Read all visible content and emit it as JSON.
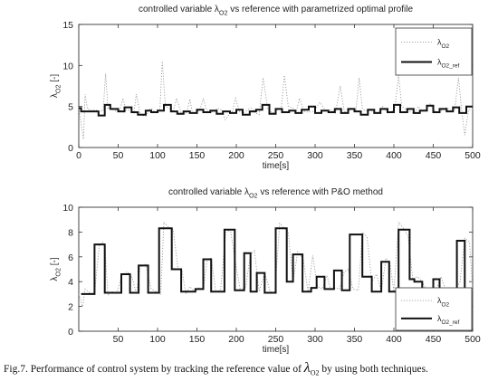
{
  "figure": {
    "caption_text": "Fig.7. Performance of control system by tracking the reference value of",
    "caption_symbol": "λ",
    "caption_symbol_sub": "O2",
    "caption_tail": "by using both techniques."
  },
  "chart_data": [
    {
      "type": "line",
      "title": "controlled variable λO2 vs reference with parametrized optimal profile",
      "title_parts": {
        "pre": "controlled variable λ",
        "sub": "O2",
        "post": " vs reference with parametrized optimal profile"
      },
      "xlabel": "time[s]",
      "ylabel": "λO2 [-]",
      "xlim": [
        0,
        500
      ],
      "ylim": [
        0,
        15
      ],
      "xticks": [
        0,
        50,
        100,
        150,
        200,
        250,
        300,
        350,
        400,
        450,
        500
      ],
      "yticks": [
        0,
        5,
        10,
        15
      ],
      "legend_position": "top-right",
      "series": [
        {
          "name": "λO2",
          "name_parts": {
            "base": "λ",
            "sub": "O2"
          },
          "style": "dotted",
          "color": "#9a9a9a",
          "x": [
            0,
            6,
            8,
            11,
            14,
            17,
            21,
            26,
            31,
            34,
            37,
            40,
            45,
            52,
            56,
            60,
            66,
            70,
            73,
            78,
            85,
            89,
            92,
            97,
            103,
            106,
            110,
            115,
            120,
            124,
            130,
            137,
            141,
            144,
            149,
            154,
            158,
            162,
            167,
            172,
            176,
            181,
            186,
            191,
            195,
            199,
            204,
            209,
            214,
            219,
            224,
            229,
            234,
            240,
            246,
            252,
            257,
            261,
            266,
            272,
            276,
            280,
            286,
            292,
            297,
            301,
            306,
            312,
            317,
            321,
            326,
            332,
            337,
            341,
            346,
            352,
            356,
            360,
            365,
            371,
            376,
            381,
            386,
            392,
            397,
            401,
            406,
            410,
            415,
            420,
            426,
            431,
            436,
            441,
            446,
            452,
            456,
            462,
            467,
            472,
            477,
            482,
            486,
            490,
            495,
            500
          ],
          "y": [
            4.8,
            1.0,
            6.5,
            4.7,
            4.6,
            4.5,
            4.6,
            4.4,
            4.5,
            9.0,
            4.8,
            4.8,
            4.5,
            4.4,
            6.0,
            4.6,
            4.5,
            4.2,
            6.5,
            4.0,
            3.8,
            4.6,
            4.8,
            4.3,
            4.6,
            10.5,
            5.0,
            4.8,
            4.4,
            6.0,
            4.2,
            4.2,
            5.9,
            4.3,
            4.2,
            4.7,
            6.0,
            4.6,
            4.4,
            4.3,
            4.8,
            4.6,
            3.4,
            4.0,
            4.4,
            6.0,
            4.4,
            4.2,
            4.6,
            4.8,
            4.2,
            4.0,
            8.5,
            4.6,
            4.2,
            4.6,
            4.8,
            8.8,
            5.0,
            4.8,
            4.2,
            6.0,
            4.4,
            4.3,
            4.4,
            4.8,
            5.5,
            4.7,
            4.4,
            4.6,
            4.2,
            7.5,
            4.4,
            4.3,
            4.8,
            4.6,
            8.5,
            4.7,
            4.5,
            4.5,
            4.2,
            4.4,
            5.0,
            4.2,
            4.4,
            4.6,
            8.8,
            5.0,
            4.7,
            4.4,
            4.2,
            5.0,
            4.4,
            4.6,
            5.3,
            4.4,
            4.2,
            4.6,
            4.9,
            4.5,
            4.5,
            8.5,
            4.6,
            1.5,
            4.6,
            4.6
          ]
        },
        {
          "name": "λO2_ref",
          "name_parts": {
            "base": "λ",
            "sub": "O2_ref"
          },
          "style": "solid",
          "color": "#111111",
          "x": [
            0,
            3,
            3,
            12,
            12,
            25,
            25,
            33,
            33,
            40,
            40,
            50,
            50,
            58,
            58,
            67,
            67,
            75,
            75,
            85,
            85,
            92,
            92,
            100,
            100,
            108,
            108,
            117,
            117,
            125,
            125,
            133,
            133,
            141,
            141,
            150,
            150,
            158,
            158,
            167,
            167,
            175,
            175,
            183,
            183,
            192,
            192,
            200,
            200,
            208,
            208,
            217,
            217,
            225,
            225,
            233,
            233,
            242,
            242,
            250,
            250,
            258,
            258,
            267,
            267,
            275,
            275,
            283,
            283,
            292,
            292,
            300,
            300,
            308,
            308,
            317,
            317,
            325,
            325,
            333,
            333,
            342,
            342,
            350,
            350,
            358,
            358,
            367,
            367,
            375,
            375,
            383,
            383,
            392,
            392,
            400,
            400,
            408,
            408,
            417,
            417,
            425,
            425,
            433,
            433,
            442,
            442,
            450,
            450,
            458,
            458,
            467,
            467,
            475,
            475,
            483,
            483,
            492,
            492,
            500
          ],
          "y": [
            4.8,
            4.8,
            4.4,
            4.4,
            4.4,
            4.4,
            3.9,
            3.9,
            5.2,
            5.2,
            4.7,
            4.7,
            4.4,
            4.4,
            4.9,
            4.9,
            4.3,
            4.3,
            4.0,
            4.0,
            4.5,
            4.5,
            4.3,
            4.3,
            4.5,
            4.5,
            5.2,
            5.2,
            4.4,
            4.4,
            4.1,
            4.1,
            4.4,
            4.4,
            4.2,
            4.2,
            4.6,
            4.6,
            4.3,
            4.3,
            4.5,
            4.5,
            4.1,
            4.1,
            4.4,
            4.4,
            4.2,
            4.2,
            4.6,
            4.6,
            4.0,
            4.0,
            4.4,
            4.4,
            4.6,
            4.6,
            5.2,
            5.2,
            4.1,
            4.1,
            4.7,
            4.7,
            4.3,
            4.3,
            4.5,
            4.5,
            4.2,
            4.2,
            4.6,
            4.6,
            5.0,
            5.0,
            4.2,
            4.2,
            4.5,
            4.5,
            4.3,
            4.3,
            4.7,
            4.7,
            4.2,
            4.2,
            4.7,
            4.7,
            4.4,
            4.4,
            4.0,
            4.0,
            4.6,
            4.6,
            4.2,
            4.2,
            4.7,
            4.7,
            4.3,
            4.3,
            5.2,
            5.2,
            4.3,
            4.3,
            4.7,
            4.7,
            4.2,
            4.2,
            4.5,
            4.5,
            5.1,
            5.1,
            4.3,
            4.3,
            4.7,
            4.7,
            4.4,
            4.4,
            4.9,
            4.9,
            4.2,
            4.2,
            5.0,
            5.0
          ]
        }
      ]
    },
    {
      "type": "line",
      "title": "controlled variable λO2 vs reference with P&O method",
      "title_parts": {
        "pre": "controlled variable λ",
        "sub": "O2",
        "post": " vs reference with P&O method"
      },
      "xlabel": "time[s]",
      "ylabel": "λO2 [-]",
      "xlim": [
        0,
        500
      ],
      "ylim": [
        0,
        10
      ],
      "xticks": [
        50,
        100,
        150,
        200,
        250,
        300,
        350,
        400,
        450,
        500
      ],
      "yticks": [
        0,
        2,
        4,
        6,
        8,
        10
      ],
      "legend_position": "bottom-right",
      "series": [
        {
          "name": "λO2",
          "name_parts": {
            "base": "λ",
            "sub": "O2"
          },
          "style": "dotted",
          "color": "#9a9a9a",
          "x": [
            0,
            5,
            8,
            14,
            20,
            26,
            30,
            33,
            37,
            42,
            48,
            55,
            62,
            68,
            73,
            78,
            85,
            92,
            98,
            104,
            108,
            115,
            120,
            126,
            131,
            136,
            141,
            147,
            152,
            158,
            163,
            168,
            174,
            180,
            187,
            193,
            198,
            205,
            212,
            218,
            223,
            229,
            236,
            243,
            249,
            255,
            261,
            266,
            272,
            278,
            285,
            291,
            297,
            303,
            309,
            315,
            320,
            326,
            331,
            337,
            342,
            348,
            355,
            360,
            366,
            372,
            378,
            384,
            390,
            395,
            400,
            406,
            412,
            418,
            424,
            430,
            436,
            442,
            448,
            454,
            460,
            466,
            472,
            478,
            484,
            490,
            496,
            500
          ],
          "y": [
            3.0,
            2.0,
            3.4,
            3.1,
            3.0,
            6.9,
            7.2,
            7.0,
            2.9,
            3.2,
            3.0,
            4.6,
            4.8,
            4.3,
            3.0,
            5.2,
            5.4,
            3.4,
            3.2,
            3.0,
            8.8,
            8.3,
            8.2,
            5.0,
            4.9,
            3.0,
            3.6,
            3.2,
            3.5,
            3.4,
            5.8,
            5.9,
            3.2,
            3.3,
            8.2,
            8.0,
            5.9,
            3.3,
            3.6,
            6.2,
            6.5,
            3.2,
            4.7,
            3.2,
            3.1,
            8.7,
            8.3,
            8.0,
            4.0,
            6.4,
            5.8,
            3.2,
            6.1,
            3.6,
            3.4,
            4.5,
            3.3,
            3.5,
            3.4,
            4.8,
            5.0,
            3.4,
            3.3,
            8.0,
            7.6,
            4.0,
            4.6,
            3.2,
            5.9,
            5.5,
            3.2,
            8.8,
            8.3,
            7.7,
            4.2,
            4.4,
            4.0,
            3.2,
            3.3,
            3.4,
            4.4,
            3.3,
            3.2,
            3.3,
            4.0,
            7.5,
            7.2,
            3.3
          ]
        },
        {
          "name": "λO2_ref",
          "name_parts": {
            "base": "λ",
            "sub": "O2_ref"
          },
          "style": "solid",
          "color": "#111111",
          "x": [
            3,
            3,
            20,
            20,
            33,
            33,
            38,
            38,
            54,
            54,
            65,
            65,
            76,
            76,
            88,
            88,
            102,
            102,
            118,
            118,
            130,
            130,
            140,
            140,
            148,
            148,
            158,
            158,
            168,
            168,
            180,
            180,
            185,
            185,
            198,
            198,
            210,
            210,
            218,
            218,
            226,
            226,
            236,
            236,
            250,
            250,
            264,
            264,
            272,
            272,
            284,
            284,
            295,
            295,
            302,
            302,
            312,
            312,
            324,
            324,
            334,
            334,
            344,
            344,
            360,
            360,
            372,
            372,
            384,
            384,
            394,
            394,
            406,
            406,
            420,
            420,
            426,
            426,
            436,
            436,
            443,
            443,
            450,
            450,
            458,
            458,
            470,
            470,
            480,
            480,
            490,
            490,
            496,
            496
          ],
          "y": [
            3.0,
            3.0,
            3.0,
            7.0,
            7.0,
            3.1,
            3.1,
            3.1,
            3.1,
            4.6,
            4.6,
            3.1,
            3.1,
            5.3,
            5.3,
            3.1,
            3.1,
            8.3,
            8.3,
            5.0,
            5.0,
            3.2,
            3.2,
            3.2,
            3.2,
            3.4,
            3.4,
            5.8,
            5.8,
            3.2,
            3.2,
            3.2,
            3.2,
            8.2,
            8.2,
            3.3,
            3.3,
            6.3,
            6.3,
            3.2,
            3.2,
            4.7,
            4.7,
            3.1,
            3.1,
            8.3,
            8.3,
            4.0,
            4.0,
            6.2,
            6.2,
            3.2,
            3.2,
            3.5,
            3.5,
            4.4,
            4.4,
            3.4,
            3.4,
            4.9,
            4.9,
            3.3,
            3.3,
            7.8,
            7.8,
            4.4,
            4.4,
            3.2,
            3.2,
            5.6,
            5.6,
            3.2,
            3.2,
            8.2,
            8.2,
            4.2,
            4.2,
            4.0,
            4.0,
            3.3,
            3.3,
            3.3,
            3.3,
            4.2,
            4.2,
            3.2,
            3.2,
            3.2,
            3.2,
            7.3,
            7.3,
            3.2,
            3.2,
            3.2
          ]
        }
      ]
    }
  ]
}
